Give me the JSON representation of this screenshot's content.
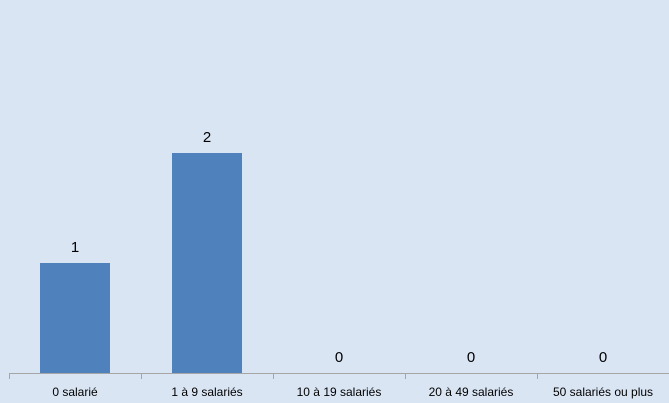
{
  "chart_data": {
    "type": "bar",
    "categories": [
      "0 salarié",
      "1 à 9 salariés",
      "10 à 19 salariés",
      "20 à 49 salariés",
      "50 salariés ou plus"
    ],
    "values": [
      1,
      2,
      0,
      0,
      0
    ],
    "title": "",
    "xlabel": "",
    "ylabel": "",
    "ylim": [
      0,
      3
    ],
    "grid": false,
    "data_labels": true,
    "colors": {
      "bar": "#4f81bd",
      "background": "#dae5f4",
      "axis": "#a6a6a6"
    }
  }
}
